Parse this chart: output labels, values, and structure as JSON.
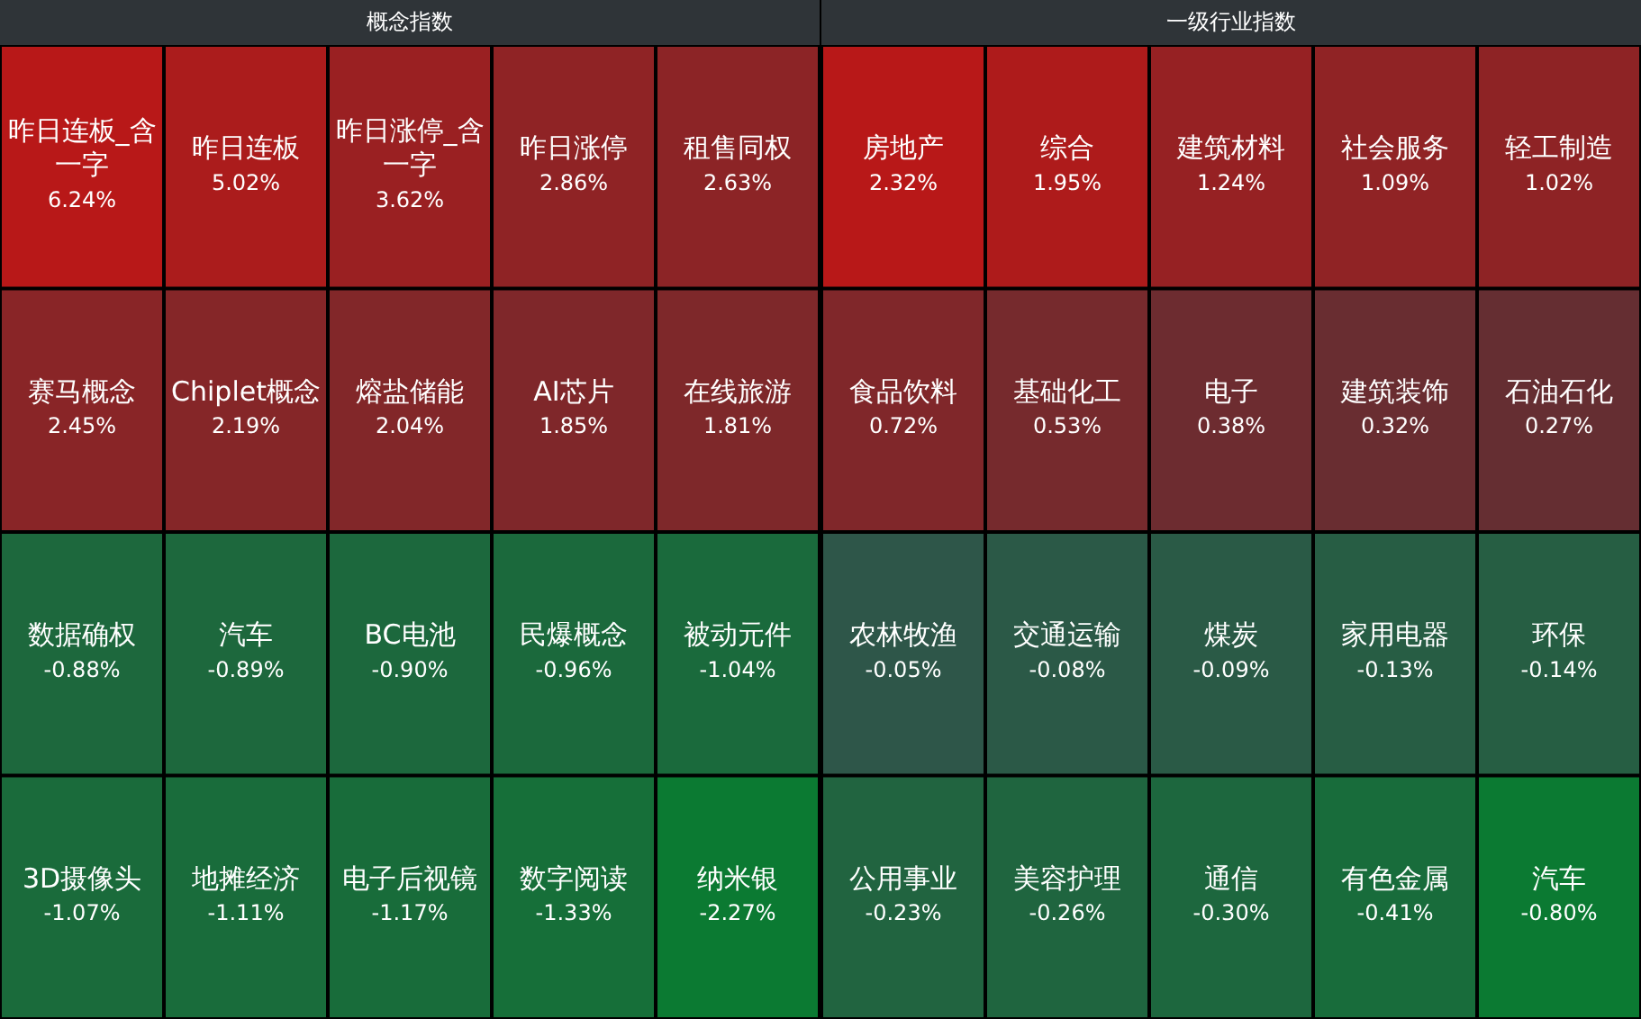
{
  "chart_data": [
    {
      "type": "other",
      "title": "概念指数",
      "categories": [
        "昨日连板_含一字",
        "昨日连板",
        "昨日涨停_含一字",
        "昨日涨停",
        "租售同权",
        "赛马概念",
        "Chiplet概念",
        "熔盐储能",
        "AI芯片",
        "在线旅游",
        "数据确权",
        "汽车",
        "BC电池",
        "民爆概念",
        "被动元件",
        "3D摄像头",
        "地摊经济",
        "电子后视镜",
        "数字阅读",
        "纳米银"
      ],
      "values": [
        6.24,
        5.02,
        3.62,
        2.86,
        2.63,
        2.45,
        2.19,
        2.04,
        1.85,
        1.81,
        -0.88,
        -0.89,
        -0.9,
        -0.96,
        -1.04,
        -1.07,
        -1.11,
        -1.17,
        -1.33,
        -2.27
      ],
      "value_labels": [
        "6.24%",
        "5.02%",
        "3.62%",
        "2.86%",
        "2.63%",
        "2.45%",
        "2.19%",
        "2.04%",
        "1.85%",
        "1.81%",
        "-0.88%",
        "-0.89%",
        "-0.90%",
        "-0.96%",
        "-1.04%",
        "-1.07%",
        "-1.11%",
        "-1.17%",
        "-1.33%",
        "-2.27%"
      ]
    },
    {
      "type": "other",
      "title": "一级行业指数",
      "categories": [
        "房地产",
        "综合",
        "建筑材料",
        "社会服务",
        "轻工制造",
        "食品饮料",
        "基础化工",
        "电子",
        "建筑装饰",
        "石油石化",
        "农林牧渔",
        "交通运输",
        "煤炭",
        "家用电器",
        "环保",
        "公用事业",
        "美容护理",
        "通信",
        "有色金属",
        "汽车"
      ],
      "values": [
        2.32,
        1.95,
        1.24,
        1.09,
        1.02,
        0.72,
        0.53,
        0.38,
        0.32,
        0.27,
        -0.05,
        -0.08,
        -0.09,
        -0.13,
        -0.14,
        -0.23,
        -0.26,
        -0.3,
        -0.41,
        -0.8
      ],
      "value_labels": [
        "2.32%",
        "1.95%",
        "1.24%",
        "1.09%",
        "1.02%",
        "0.72%",
        "0.53%",
        "0.38%",
        "0.32%",
        "0.27%",
        "-0.05%",
        "-0.08%",
        "-0.09%",
        "-0.13%",
        "-0.14%",
        "-0.23%",
        "-0.26%",
        "-0.30%",
        "-0.41%",
        "-0.80%"
      ]
    }
  ]
}
